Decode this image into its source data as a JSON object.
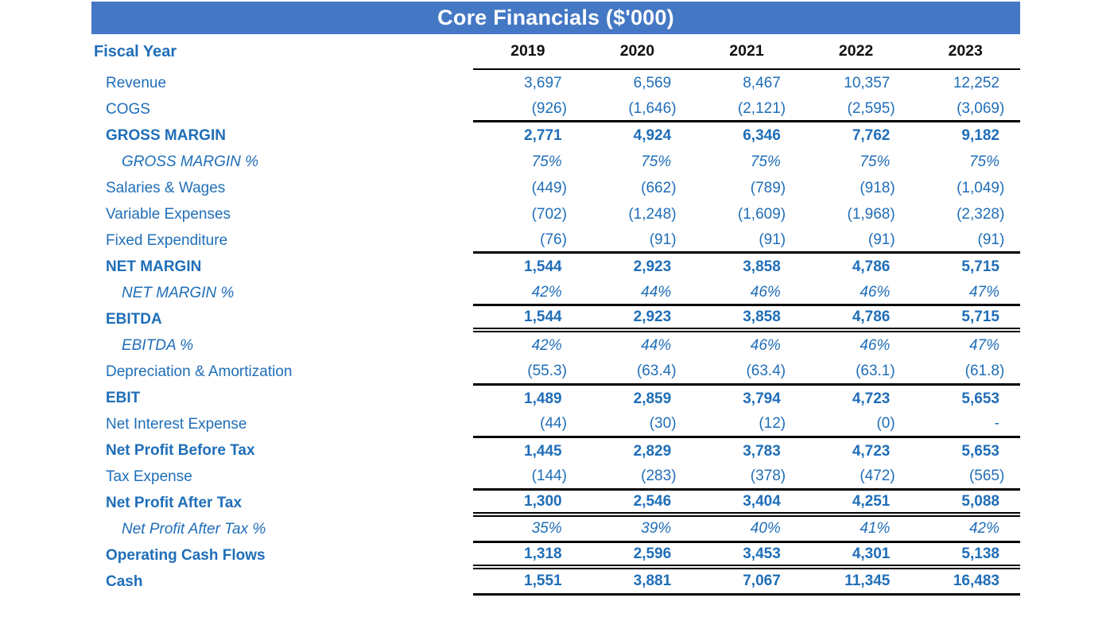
{
  "title": "Core Financials ($'000)",
  "colors": {
    "header_bg": "#4478c4",
    "header_text": "#ffffff",
    "text_blue": "#1f6eb8",
    "year_text": "#111111",
    "rule_line": "#000000"
  },
  "table": {
    "fiscal_year_label": "Fiscal Year",
    "years": [
      "2019",
      "2020",
      "2021",
      "2022",
      "2023"
    ],
    "rows": [
      {
        "label": "Revenue",
        "style": "normal",
        "rule": "none",
        "values": [
          "3,697",
          "6,569",
          "8,467",
          "10,357",
          "12,252"
        ]
      },
      {
        "label": "COGS",
        "style": "normal",
        "rule": "thick",
        "values": [
          "(926)",
          "(1,646)",
          "(2,121)",
          "(2,595)",
          "(3,069)"
        ]
      },
      {
        "label": "GROSS MARGIN",
        "style": "bold",
        "rule": "none",
        "values": [
          "2,771",
          "4,924",
          "6,346",
          "7,762",
          "9,182"
        ]
      },
      {
        "label": "GROSS MARGIN %",
        "style": "italic",
        "rule": "none",
        "values": [
          "75%",
          "75%",
          "75%",
          "75%",
          "75%"
        ]
      },
      {
        "label": "Salaries & Wages",
        "style": "normal",
        "rule": "none",
        "values": [
          "(449)",
          "(662)",
          "(789)",
          "(918)",
          "(1,049)"
        ]
      },
      {
        "label": "Variable Expenses",
        "style": "normal",
        "rule": "none",
        "values": [
          "(702)",
          "(1,248)",
          "(1,609)",
          "(1,968)",
          "(2,328)"
        ]
      },
      {
        "label": "Fixed Expenditure",
        "style": "normal",
        "rule": "thick",
        "values": [
          "(76)",
          "(91)",
          "(91)",
          "(91)",
          "(91)"
        ]
      },
      {
        "label": "NET MARGIN",
        "style": "bold",
        "rule": "none",
        "values": [
          "1,544",
          "2,923",
          "3,858",
          "4,786",
          "5,715"
        ]
      },
      {
        "label": "NET MARGIN %",
        "style": "italic",
        "rule": "thick",
        "values": [
          "42%",
          "44%",
          "46%",
          "46%",
          "47%"
        ]
      },
      {
        "label": "EBITDA",
        "style": "bold",
        "rule": "double",
        "values": [
          "1,544",
          "2,923",
          "3,858",
          "4,786",
          "5,715"
        ]
      },
      {
        "label": "EBITDA %",
        "style": "italic",
        "rule": "none",
        "values": [
          "42%",
          "44%",
          "46%",
          "46%",
          "47%"
        ]
      },
      {
        "label": "Depreciation & Amortization",
        "style": "normal",
        "rule": "thick",
        "values": [
          "(55.3)",
          "(63.4)",
          "(63.4)",
          "(63.1)",
          "(61.8)"
        ]
      },
      {
        "label": "EBIT",
        "style": "bold",
        "rule": "none",
        "values": [
          "1,489",
          "2,859",
          "3,794",
          "4,723",
          "5,653"
        ]
      },
      {
        "label": "Net Interest Expense",
        "style": "normal",
        "rule": "thick",
        "values": [
          "(44)",
          "(30)",
          "(12)",
          "(0)",
          "-"
        ]
      },
      {
        "label": "Net Profit Before Tax",
        "style": "bold",
        "rule": "none",
        "values": [
          "1,445",
          "2,829",
          "3,783",
          "4,723",
          "5,653"
        ]
      },
      {
        "label": "Tax Expense",
        "style": "normal",
        "rule": "thick",
        "values": [
          "(144)",
          "(283)",
          "(378)",
          "(472)",
          "(565)"
        ]
      },
      {
        "label": "Net Profit After Tax",
        "style": "bold",
        "rule": "double",
        "values": [
          "1,300",
          "2,546",
          "3,404",
          "4,251",
          "5,088"
        ]
      },
      {
        "label": "Net Profit After Tax %",
        "style": "italic",
        "rule": "thick",
        "values": [
          "35%",
          "39%",
          "40%",
          "41%",
          "42%"
        ]
      },
      {
        "label": "Operating Cash Flows",
        "style": "bold",
        "rule": "double",
        "values": [
          "1,318",
          "2,596",
          "3,453",
          "4,301",
          "5,138"
        ]
      },
      {
        "label": "Cash",
        "style": "bold",
        "rule": "thick",
        "values": [
          "1,551",
          "3,881",
          "7,067",
          "11,345",
          "16,483"
        ]
      }
    ]
  }
}
